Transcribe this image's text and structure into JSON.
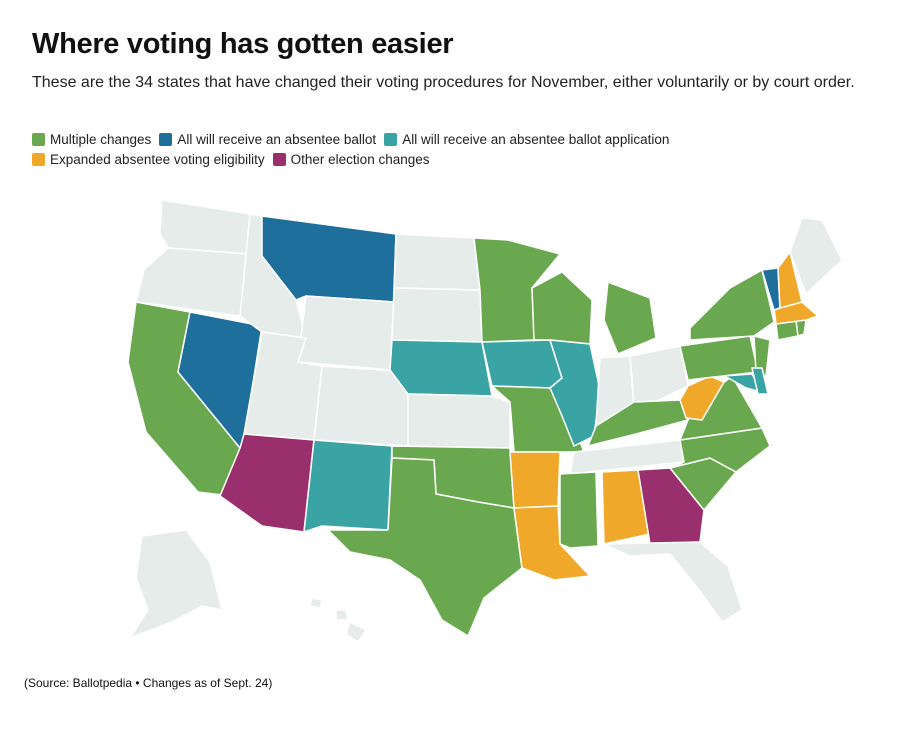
{
  "title": "Where voting has gotten easier",
  "subtitle": "These are the 34 states that have changed their voting procedures for November, either voluntarily or by court order.",
  "legend": [
    {
      "key": "multiple",
      "label": "Multiple changes",
      "color": "#6aa84f"
    },
    {
      "key": "ballot",
      "label": "All will receive an absentee ballot",
      "color": "#1f6f9c"
    },
    {
      "key": "application",
      "label": "All will receive an absentee ballot application",
      "color": "#3aa3a3"
    },
    {
      "key": "eligibility",
      "label": "Expanded absentee voting eligibility",
      "color": "#efa829"
    },
    {
      "key": "other",
      "label": "Other election changes",
      "color": "#9a2f6e"
    }
  ],
  "no_change_color": "#e6ece9",
  "states": {
    "WA": "none",
    "OR": "none",
    "CA": "multiple",
    "NV": "ballot",
    "ID": "none",
    "MT": "ballot",
    "WY": "none",
    "UT": "none",
    "AZ": "other",
    "CO": "none",
    "NM": "application",
    "ND": "none",
    "SD": "none",
    "NE": "application",
    "KS": "none",
    "OK": "multiple",
    "TX": "multiple",
    "MN": "multiple",
    "IA": "application",
    "MO": "multiple",
    "AR": "eligibility",
    "LA": "eligibility",
    "WI": "multiple",
    "IL": "application",
    "MI": "multiple",
    "IN": "none",
    "OH": "none",
    "KY": "multiple",
    "TN": "none",
    "MS": "multiple",
    "AL": "eligibility",
    "GA": "other",
    "FL": "none",
    "SC": "multiple",
    "NC": "multiple",
    "VA": "multiple",
    "WV": "eligibility",
    "PA": "multiple",
    "NY": "multiple",
    "NJ": "multiple",
    "DE": "application",
    "MD": "application",
    "CT": "multiple",
    "RI": "multiple",
    "MA": "eligibility",
    "VT": "ballot",
    "NH": "eligibility",
    "ME": "none",
    "AK": "none",
    "HI": "none"
  },
  "source": "(Source: Ballotpedia • Changes as of Sept. 24)"
}
